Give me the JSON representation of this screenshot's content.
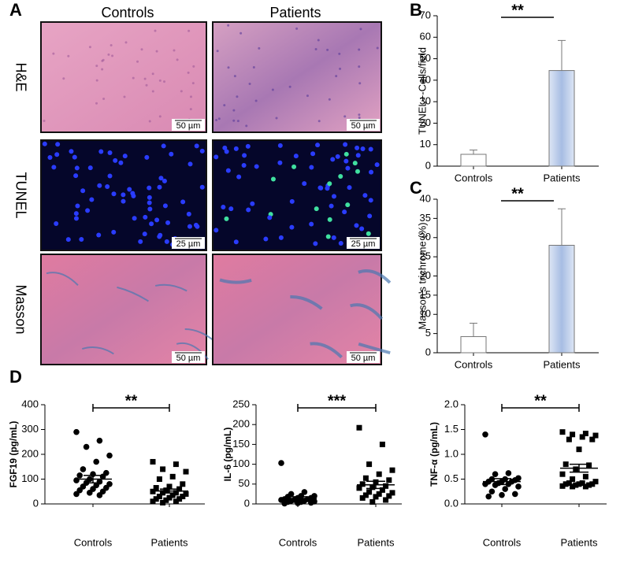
{
  "panel_a": {
    "label": "A",
    "columns": [
      "Controls",
      "Patients"
    ],
    "rows": [
      "H&E",
      "TUNEL",
      "Masson"
    ],
    "scale_bars": [
      [
        "50 µm",
        "50 µm"
      ],
      [
        "25 µm",
        "25 µm"
      ],
      [
        "50 µm",
        "50 µm"
      ]
    ]
  },
  "panel_d": {
    "label": "D"
  },
  "chart_data": [
    {
      "type": "bar",
      "label": "B",
      "ylabel": "TUNEL+-Cells/field",
      "categories": [
        "Controls",
        "Patients"
      ],
      "values": [
        5.5,
        44.5
      ],
      "errors": [
        2,
        14
      ],
      "colors": [
        "#ffffff",
        "#b9cbe8"
      ],
      "ylim": [
        0,
        70
      ],
      "yticks": [
        0,
        10,
        20,
        30,
        40,
        50,
        60,
        70
      ],
      "annotation": "**"
    },
    {
      "type": "bar",
      "label": "C",
      "ylabel": "Masson's trichrome (%)",
      "categories": [
        "Controls",
        "Patients"
      ],
      "values": [
        4.2,
        28
      ],
      "errors": [
        3.5,
        9.5
      ],
      "colors": [
        "#ffffff",
        "#b9cbe8"
      ],
      "ylim": [
        0,
        40
      ],
      "yticks": [
        0,
        5,
        10,
        15,
        20,
        25,
        30,
        35,
        40
      ],
      "annotation": "**"
    },
    {
      "type": "strip",
      "ylabel": "FGF19 (pg/mL)",
      "series": [
        {
          "name": "Controls",
          "marker": "circle",
          "color": "#000000",
          "values": [
            290,
            255,
            230,
            195,
            170,
            140,
            125,
            120,
            115,
            110,
            100,
            95,
            90,
            85,
            80,
            75,
            70,
            65,
            60,
            55,
            50,
            45,
            40,
            35
          ]
        },
        {
          "name": "Patients",
          "marker": "square",
          "color": "#000000",
          "values": [
            170,
            160,
            140,
            130,
            110,
            100,
            80,
            70,
            65,
            60,
            55,
            50,
            45,
            45,
            40,
            35,
            30,
            30,
            25,
            20,
            20,
            15,
            10,
            10,
            5
          ]
        }
      ],
      "mean": [
        100,
        52
      ],
      "sem": [
        15,
        8
      ],
      "ylim": [
        0,
        400
      ],
      "yticks": [
        0,
        100,
        200,
        300,
        400
      ],
      "annotation": "**"
    },
    {
      "type": "strip",
      "ylabel": "IL-6 (pg/mL)",
      "series": [
        {
          "name": "Controls",
          "marker": "circle",
          "color": "#000000",
          "values": [
            103,
            30,
            25,
            20,
            20,
            18,
            15,
            15,
            12,
            12,
            10,
            10,
            8,
            8,
            6,
            5,
            5,
            3,
            2,
            1
          ]
        },
        {
          "name": "Patients",
          "marker": "square",
          "color": "#000000",
          "values": [
            192,
            150,
            100,
            85,
            75,
            65,
            60,
            55,
            50,
            45,
            42,
            40,
            35,
            30,
            28,
            25,
            22,
            20,
            18,
            15,
            10,
            5
          ]
        }
      ],
      "mean": [
        13,
        48
      ],
      "sem": [
        5,
        9
      ],
      "ylim": [
        0,
        250
      ],
      "yticks": [
        0,
        50,
        100,
        150,
        200,
        250
      ],
      "annotation": "***"
    },
    {
      "type": "strip",
      "ylabel": "TNF-α (pg/mL)",
      "series": [
        {
          "name": "Controls",
          "marker": "circle",
          "color": "#000000",
          "values": [
            1.4,
            0.62,
            0.6,
            0.52,
            0.5,
            0.5,
            0.48,
            0.45,
            0.45,
            0.45,
            0.42,
            0.4,
            0.4,
            0.38,
            0.35,
            0.3,
            0.25,
            0.2,
            0.18,
            0.15
          ]
        },
        {
          "name": "Patients",
          "marker": "square",
          "color": "#000000",
          "values": [
            1.45,
            1.42,
            1.4,
            1.38,
            1.35,
            1.3,
            1.3,
            1.1,
            0.8,
            0.78,
            0.7,
            0.6,
            0.55,
            0.5,
            0.45,
            0.42,
            0.42,
            0.4,
            0.4,
            0.4,
            0.38,
            0.38,
            0.36,
            0.35,
            0.35
          ]
        }
      ],
      "mean": [
        0.45,
        0.72
      ],
      "sem": [
        0.06,
        0.08
      ],
      "ylim": [
        0,
        2
      ],
      "yticks": [
        {
          "value": 0,
          "label": "0.0"
        },
        0.5,
        {
          "value": 1,
          "label": "1.0"
        },
        1.5,
        {
          "value": 2,
          "label": "2.0"
        }
      ],
      "annotation": "**"
    }
  ]
}
